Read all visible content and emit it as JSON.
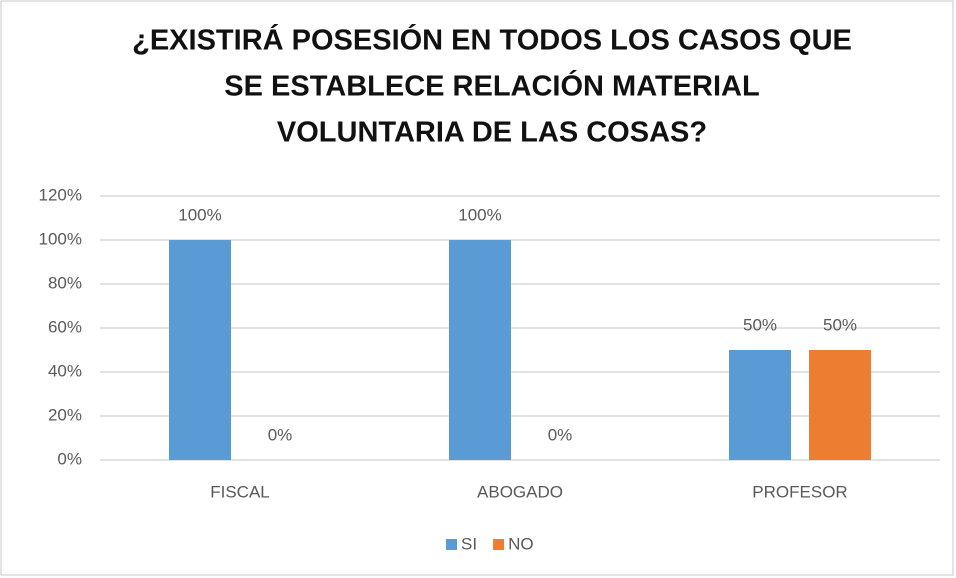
{
  "chart_data": {
    "type": "bar",
    "title": [
      "¿EXISTIRÁ POSESIÓN EN TODOS LOS CASOS QUE",
      "SE ESTABLECE RELACIÓN MATERIAL",
      "VOLUNTARIA DE LAS COSAS?"
    ],
    "categories": [
      "FISCAL",
      "ABOGADO",
      "PROFESOR"
    ],
    "series": [
      {
        "name": "SI",
        "color": "#5b9bd5",
        "values": [
          100,
          100,
          50
        ],
        "value_labels": [
          "100%",
          "100%",
          "50%"
        ]
      },
      {
        "name": "NO",
        "color": "#ed7d31",
        "values": [
          0,
          0,
          50
        ],
        "value_labels": [
          "0%",
          "0%",
          "50%"
        ]
      }
    ],
    "ylim": [
      0,
      120
    ],
    "yticks": [
      {
        "value": 0,
        "label": "0%"
      },
      {
        "value": 20,
        "label": "20%"
      },
      {
        "value": 40,
        "label": "40%"
      },
      {
        "value": 60,
        "label": "60%"
      },
      {
        "value": 80,
        "label": "80%"
      },
      {
        "value": 100,
        "label": "100%"
      },
      {
        "value": 120,
        "label": "120%"
      }
    ],
    "grid": true,
    "legend": "bottom"
  }
}
